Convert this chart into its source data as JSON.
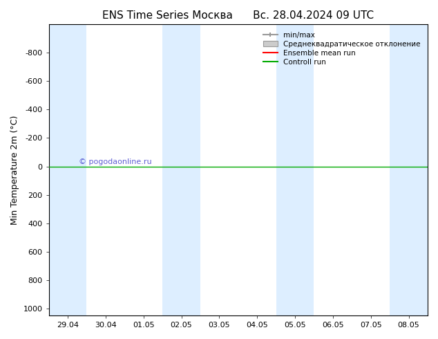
{
  "title": "ENS Time Series Москва      Вс. 28.04.2024 09 UTC",
  "ylabel": "Min Temperature 2m (°C)",
  "ylim": [
    -1000,
    1050
  ],
  "yticks": [
    -800,
    -600,
    -400,
    -200,
    0,
    200,
    400,
    600,
    800,
    1000
  ],
  "xlim": [
    0,
    10
  ],
  "xtick_positions": [
    0.5,
    1.5,
    2.5,
    3.5,
    4.5,
    5.5,
    6.5,
    7.5,
    8.5,
    9.5
  ],
  "xtick_labels": [
    "29.04",
    "30.04",
    "01.05",
    "02.05",
    "03.05",
    "04.05",
    "05.05",
    "06.05",
    "07.05",
    "08.05"
  ],
  "shaded_columns": [
    0,
    3,
    6,
    9
  ],
  "shade_color": "#ddeeff",
  "green_line_y": 0,
  "green_line_color": "#00aa00",
  "watermark": "© pogodaonline.ru",
  "watermark_color": "#4444cc",
  "legend_labels": [
    "min/max",
    "Среднеквадратическое отклонение",
    "Ensemble mean run",
    "Controll run"
  ],
  "legend_colors": [
    "#aaaaaa",
    "#cccccc",
    "#ff0000",
    "#00aa00"
  ],
  "background_color": "#ffffff",
  "title_fontsize": 11,
  "axis_fontsize": 9,
  "tick_fontsize": 8
}
